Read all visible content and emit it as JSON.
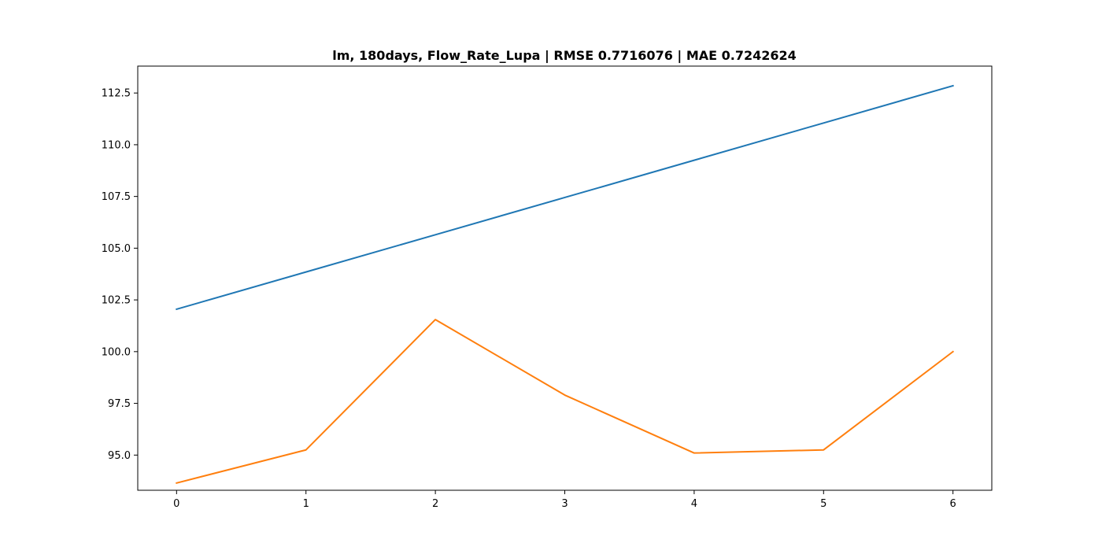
{
  "chart_data": {
    "type": "line",
    "title": "lm, 180days, Flow_Rate_Lupa | RMSE 0.7716076 | MAE 0.7242624",
    "xlabel": "",
    "ylabel": "",
    "x": [
      0,
      1,
      2,
      3,
      4,
      5,
      6
    ],
    "xlim": [
      -0.3,
      6.3
    ],
    "ylim": [
      93.3,
      113.8
    ],
    "xticks": [
      0,
      1,
      2,
      3,
      4,
      5,
      6
    ],
    "xtick_labels": [
      "0",
      "1",
      "2",
      "3",
      "4",
      "5",
      "6"
    ],
    "yticks": [
      95.0,
      97.5,
      100.0,
      102.5,
      105.0,
      107.5,
      110.0,
      112.5
    ],
    "ytick_labels": [
      "95.0",
      "97.5",
      "100.0",
      "102.5",
      "105.0",
      "107.5",
      "110.0",
      "112.5"
    ],
    "grid": false,
    "series": [
      {
        "color": "#1f77b4",
        "values": [
          102.05,
          103.85,
          105.65,
          107.45,
          109.25,
          111.05,
          112.85
        ]
      },
      {
        "color": "#ff7f0e",
        "values": [
          93.65,
          95.25,
          101.55,
          97.9,
          95.1,
          95.25,
          100.0
        ]
      }
    ]
  }
}
